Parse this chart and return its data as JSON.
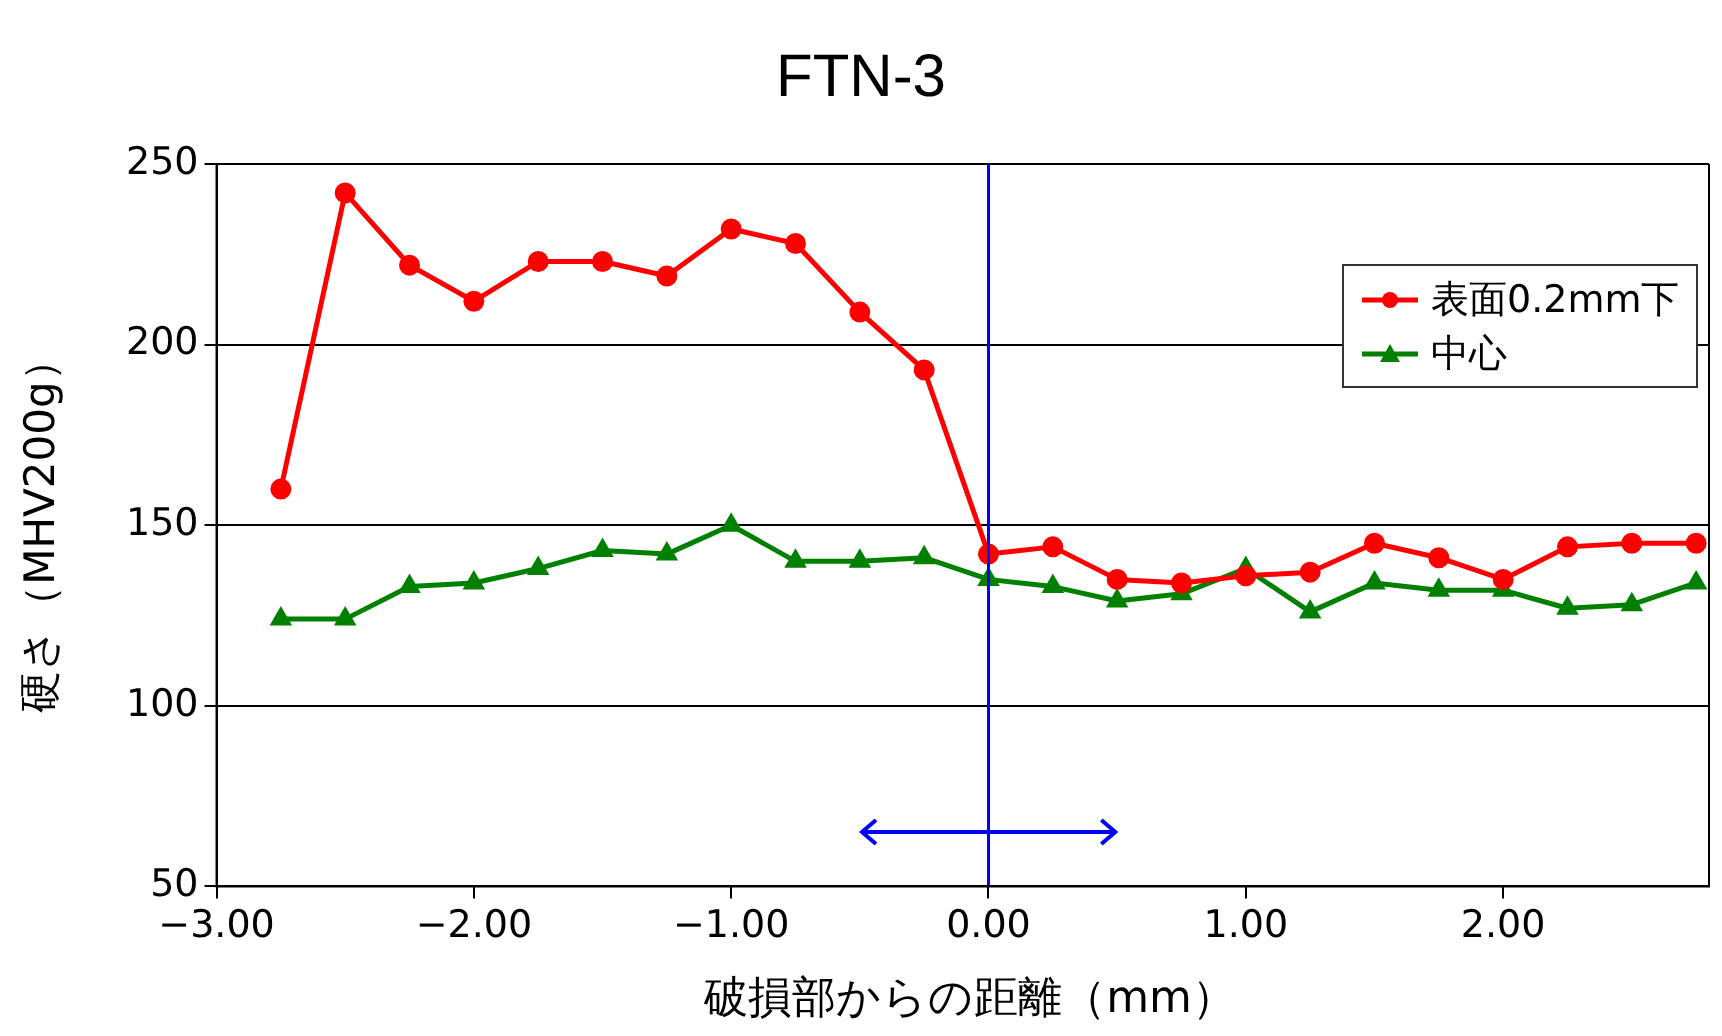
{
  "chart_data": {
    "type": "line",
    "title": "FTN-3",
    "xlabel": "破損部からの距離（mm）",
    "ylabel": "硬さ（MHV200g）",
    "x": [
      -2.75,
      -2.5,
      -2.25,
      -2.0,
      -1.75,
      -1.5,
      -1.25,
      -1.0,
      -0.75,
      -0.5,
      -0.25,
      0,
      0.25,
      0.5,
      0.75,
      1.0,
      1.25,
      1.5,
      1.75,
      2.0,
      2.25,
      2.5,
      2.75
    ],
    "series": [
      {
        "name": "表面0.2mm下",
        "color": "#ff0000",
        "marker": "circle",
        "values": [
          160,
          242,
          222,
          212,
          223,
          223,
          219,
          232,
          228,
          209,
          193,
          142,
          144,
          135,
          134,
          136,
          137,
          145,
          141,
          135,
          144,
          145,
          145
        ]
      },
      {
        "name": "中心",
        "color": "#008000",
        "marker": "triangle",
        "values": [
          124,
          124,
          133,
          134,
          138,
          143,
          142,
          150,
          140,
          140,
          141,
          135,
          133,
          129,
          131,
          138,
          126,
          134,
          132,
          132,
          127,
          128,
          134
        ]
      }
    ],
    "xlim": [
      -3,
      2.8
    ],
    "xticks": [
      {
        "value": -3,
        "label": "−3.00"
      },
      {
        "value": -2,
        "label": "−2.00"
      },
      {
        "value": -1,
        "label": "−1.00"
      },
      {
        "value": 0,
        "label": "0.00"
      },
      {
        "value": 1,
        "label": "1.00"
      },
      {
        "value": 2,
        "label": "2.00"
      }
    ],
    "ylim": [
      50,
      250
    ],
    "yticks": [
      50,
      100,
      150,
      200,
      250
    ],
    "grid": "y",
    "legend": "top right",
    "line_style": "solid",
    "ref_lines": [
      {
        "axis": "x",
        "value": 0,
        "color": "#0000ff"
      }
    ]
  }
}
